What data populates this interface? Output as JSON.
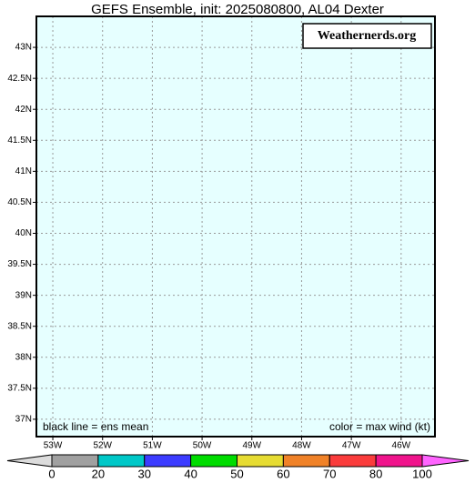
{
  "chart_data": {
    "type": "map",
    "title": "GEFS Ensemble, init: 2025080800, AL04 Dexter",
    "background": "#e6ffff",
    "grid": true,
    "xlim": [
      -53.33,
      -45.32
    ],
    "ylim": [
      36.72,
      43.5
    ],
    "xticks": [
      {
        "value": -53,
        "label": "53W"
      },
      {
        "value": -52,
        "label": "52W"
      },
      {
        "value": -51,
        "label": "51W"
      },
      {
        "value": -50,
        "label": "50W"
      },
      {
        "value": -49,
        "label": "49W"
      },
      {
        "value": -48,
        "label": "48W"
      },
      {
        "value": -47,
        "label": "47W"
      },
      {
        "value": -46,
        "label": "46W"
      }
    ],
    "yticks": [
      {
        "value": 37,
        "label": "37N"
      },
      {
        "value": 37.5,
        "label": "37.5N"
      },
      {
        "value": 38,
        "label": "38N"
      },
      {
        "value": 38.5,
        "label": "38.5N"
      },
      {
        "value": 39,
        "label": "39N"
      },
      {
        "value": 39.5,
        "label": "39.5N"
      },
      {
        "value": 40,
        "label": "40N"
      },
      {
        "value": 40.5,
        "label": "40.5N"
      },
      {
        "value": 41,
        "label": "41N"
      },
      {
        "value": 41.5,
        "label": "41.5N"
      },
      {
        "value": 42,
        "label": "42N"
      },
      {
        "value": 42.5,
        "label": "42.5N"
      },
      {
        "value": 43,
        "label": "43N"
      }
    ],
    "watermark": "Weathernerds.org",
    "annotations": [
      "black line = ens mean",
      "color = max wind (kt)"
    ],
    "colorbar": {
      "bounds": [
        0,
        20,
        30,
        40,
        50,
        60,
        70,
        80,
        100
      ],
      "colors": [
        "#a0a0a0",
        "#00c8c8",
        "#3c3cff",
        "#00dc00",
        "#e6dc32",
        "#f08228",
        "#fa3c3c",
        "#f0148c"
      ],
      "under_color": "#dcdcdc",
      "over_color": "#ff64ff"
    }
  }
}
